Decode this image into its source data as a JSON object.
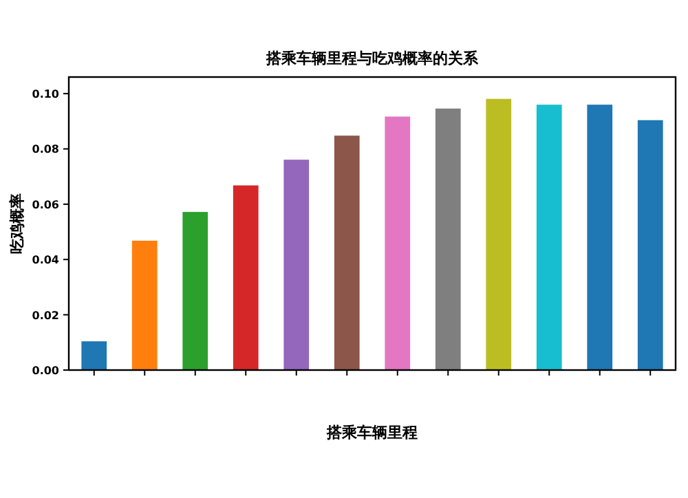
{
  "chart_data": {
    "type": "bar",
    "title": "搭乘车辆里程与吃鸡概率的关系",
    "xlabel": "搭乘车辆里程",
    "ylabel": "吃鸡概率",
    "categories": [
      null,
      null,
      null,
      null,
      null,
      null,
      null,
      null,
      null,
      null,
      null,
      null
    ],
    "values": [
      0.0104,
      0.0468,
      0.0572,
      0.0668,
      0.0761,
      0.0848,
      0.0917,
      0.0946,
      0.0981,
      0.096,
      0.096,
      0.0904
    ],
    "colors": [
      "#1f77b4",
      "#ff7f0e",
      "#2ca02c",
      "#d62728",
      "#9467bd",
      "#8c564b",
      "#e377c2",
      "#7f7f7f",
      "#bcbd22",
      "#17becf",
      "#1f77b4",
      "#1f77b4"
    ],
    "ylim": [
      0,
      0.106
    ],
    "yticks": [
      {
        "value": 0,
        "label": "0.00"
      },
      {
        "value": 0.02,
        "label": "0.02"
      },
      {
        "value": 0.04,
        "label": "0.04"
      },
      {
        "value": 0.06,
        "label": "0.06"
      },
      {
        "value": 0.08,
        "label": "0.08"
      },
      {
        "value": 0.1,
        "label": "0.10"
      }
    ],
    "grid": false
  }
}
